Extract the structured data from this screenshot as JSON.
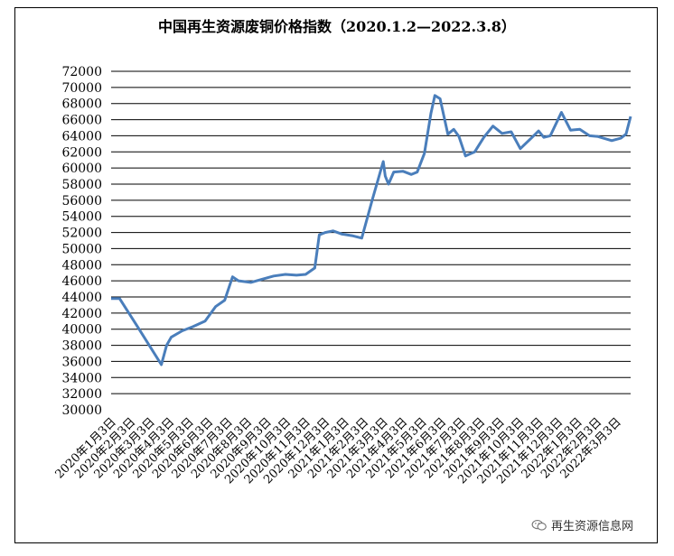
{
  "chart_data": {
    "type": "line",
    "title": "中国再生资源废铜价格指数（2020.1.2—2022.3.8）",
    "xlabel": "",
    "ylabel": "",
    "ylim": [
      30000,
      72000
    ],
    "yticks": [
      30000,
      32000,
      34000,
      36000,
      38000,
      40000,
      42000,
      44000,
      46000,
      48000,
      50000,
      52000,
      54000,
      56000,
      58000,
      60000,
      62000,
      64000,
      66000,
      68000,
      70000,
      72000
    ],
    "x_tick_labels": [
      "2020年1月3日",
      "2020年2月3日",
      "2020年3月3日",
      "2020年4月3日",
      "2020年5月3日",
      "2020年6月3日",
      "2020年7月3日",
      "2020年8月3日",
      "2020年9月3日",
      "2020年10月3日",
      "2020年11月3日",
      "2020年12月3日",
      "2021年1月3日",
      "2021年2月3日",
      "2021年3月3日",
      "2021年4月3日",
      "2021年5月3日",
      "2021年6月3日",
      "2021年7月3日",
      "2021年8月3日",
      "2021年9月3日",
      "2021年10月3日",
      "2021年11月3日",
      "2021年12月3日",
      "2022年1月3日",
      "2022年2月3日",
      "2022年3月3日"
    ],
    "grid": "horizontal",
    "legend": "none",
    "line_color": "#4a7ebb",
    "series": [
      {
        "x": [
          "2020-01-02",
          "2020-01-15",
          "2020-02-10",
          "2020-03-19",
          "2020-03-27",
          "2020-04-03",
          "2020-04-20",
          "2020-05-06",
          "2020-05-25",
          "2020-06-10",
          "2020-06-24",
          "2020-07-06",
          "2020-07-15",
          "2020-08-03",
          "2020-08-20",
          "2020-09-07",
          "2020-09-25",
          "2020-10-12",
          "2020-10-26",
          "2020-11-09",
          "2020-11-16",
          "2020-11-25",
          "2020-12-07",
          "2020-12-21",
          "2021-01-05",
          "2021-01-20",
          "2021-02-05",
          "2021-02-22",
          "2021-02-25",
          "2021-03-02",
          "2021-03-10",
          "2021-03-24",
          "2021-04-06",
          "2021-04-15",
          "2021-04-26",
          "2021-05-06",
          "2021-05-12",
          "2021-05-20",
          "2021-06-01",
          "2021-06-10",
          "2021-06-18",
          "2021-06-28",
          "2021-07-12",
          "2021-07-26",
          "2021-08-09",
          "2021-08-23",
          "2021-09-06",
          "2021-09-20",
          "2021-10-08",
          "2021-10-18",
          "2021-10-26",
          "2021-11-05",
          "2021-11-22",
          "2021-12-06",
          "2021-12-20",
          "2022-01-04",
          "2022-01-17",
          "2022-02-07",
          "2022-02-21",
          "2022-03-01",
          "2022-03-08"
        ],
        "values": [
          43800,
          43800,
          40500,
          35600,
          38000,
          39000,
          39800,
          40300,
          41000,
          42800,
          43600,
          46500,
          46000,
          45800,
          46200,
          46600,
          46800,
          46700,
          46800,
          47600,
          51700,
          52000,
          52200,
          51800,
          51600,
          51300,
          56000,
          60800,
          59000,
          58000,
          59500,
          59600,
          59200,
          59500,
          61800,
          66800,
          69000,
          68600,
          64200,
          64800,
          63900,
          61500,
          62000,
          63800,
          65200,
          64300,
          64500,
          62400,
          63800,
          64600,
          63800,
          64000,
          66900,
          64700,
          64800,
          64000,
          63900,
          63400,
          63700,
          64200,
          66400
        ]
      }
    ],
    "watermark": {
      "text": "再生资源信息网",
      "icon": "wechat-icon"
    }
  }
}
